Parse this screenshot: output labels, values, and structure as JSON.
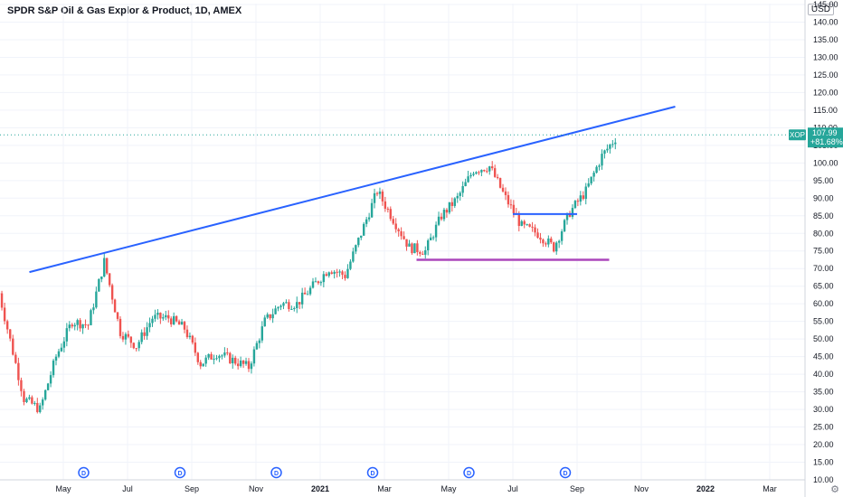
{
  "header": {
    "title": "SPDR S&P Oil & Gas Explor & Product, 1D, AMEX",
    "currency": "USD"
  },
  "last_label": {
    "symbol": "XOP",
    "price": "107.99",
    "change": "+81.68%",
    "color": "#26a69a"
  },
  "dividend_marker": "D",
  "colors": {
    "up": "#26a69a",
    "down": "#ef5350",
    "trendline": "#2962ff",
    "support": "#ab47bc",
    "grid": "#f0f3fa"
  },
  "icons": {
    "settings": "gear-icon"
  },
  "chart_data": {
    "type": "candlestick",
    "symbol": "XOP",
    "ylim": [
      10,
      145
    ],
    "y_ticks": [
      "145.00",
      "140.00",
      "135.00",
      "130.00",
      "125.00",
      "120.00",
      "115.00",
      "110.00",
      "105.00",
      "100.00",
      "95.00",
      "90.00",
      "85.00",
      "80.00",
      "75.00",
      "70.00",
      "65.00",
      "60.00",
      "55.00",
      "50.00",
      "45.00",
      "40.00",
      "35.00",
      "30.00",
      "25.00",
      "20.00",
      "15.00",
      "10.00"
    ],
    "x_ticks": [
      "May",
      "Jul",
      "Sep",
      "Nov",
      "2021",
      "Mar",
      "May",
      "Jul",
      "Sep",
      "Nov",
      "2022",
      "Mar"
    ],
    "x_ticks_bold": [
      "2021",
      "2022"
    ],
    "dividend_months": [
      "Jun 2020",
      "Sep 2020",
      "Dec 2020",
      "Mar 2021",
      "Jun 2021",
      "Sep 2021"
    ],
    "price_path": [
      [
        "Mar 2020",
        63
      ],
      [
        "Apr 2020",
        33
      ],
      [
        "Apr 2020",
        30
      ],
      [
        "May 2020",
        45
      ],
      [
        "May 2020",
        55
      ],
      [
        "Jun 2020",
        54
      ],
      [
        "Jun 2020",
        72
      ],
      [
        "Jul 2020",
        52
      ],
      [
        "Jul 2020",
        48
      ],
      [
        "Aug 2020",
        56
      ],
      [
        "Aug 2020",
        56
      ],
      [
        "Sep 2020",
        53
      ],
      [
        "Sep 2020",
        43
      ],
      [
        "Oct 2020",
        46
      ],
      [
        "Oct 2020",
        44
      ],
      [
        "Nov 2020",
        42
      ],
      [
        "Nov 2020",
        55
      ],
      [
        "Dec 2020",
        60
      ],
      [
        "Dec 2020",
        60
      ],
      [
        "Jan 2021",
        65
      ],
      [
        "Jan 2021",
        70
      ],
      [
        "Feb 2021",
        68
      ],
      [
        "Feb 2021",
        80
      ],
      [
        "Mar 2021",
        92
      ],
      [
        "Mar 2021",
        84
      ],
      [
        "Apr 2021",
        76
      ],
      [
        "Apr 2021",
        75
      ],
      [
        "May 2021",
        85
      ],
      [
        "May 2021",
        90
      ],
      [
        "Jun 2021",
        98
      ],
      [
        "Jun 2021",
        99
      ],
      [
        "Jul 2021",
        90
      ],
      [
        "Jul 2021",
        82
      ],
      [
        "Aug 2021",
        80
      ],
      [
        "Aug 2021",
        76
      ],
      [
        "Sep 2021",
        86
      ],
      [
        "Sep 2021",
        92
      ],
      [
        "Oct 2021",
        102
      ],
      [
        "Oct 2021",
        108
      ]
    ],
    "lines": [
      {
        "name": "",
        "kind": "trendline",
        "from": [
          "Apr 2020",
          69
        ],
        "to": [
          "Dec 2021",
          116
        ]
      },
      {
        "name": "",
        "kind": "support",
        "from": [
          "Apr 2021",
          72.5
        ],
        "to": [
          "Oct 2021",
          72.5
        ]
      },
      {
        "name": "",
        "kind": "resistance",
        "from": [
          "Jul 2021",
          85.5
        ],
        "to": [
          "Sep 2021",
          85.5
        ]
      }
    ],
    "last_price": 107.99,
    "grid": true,
    "legend": "none"
  }
}
